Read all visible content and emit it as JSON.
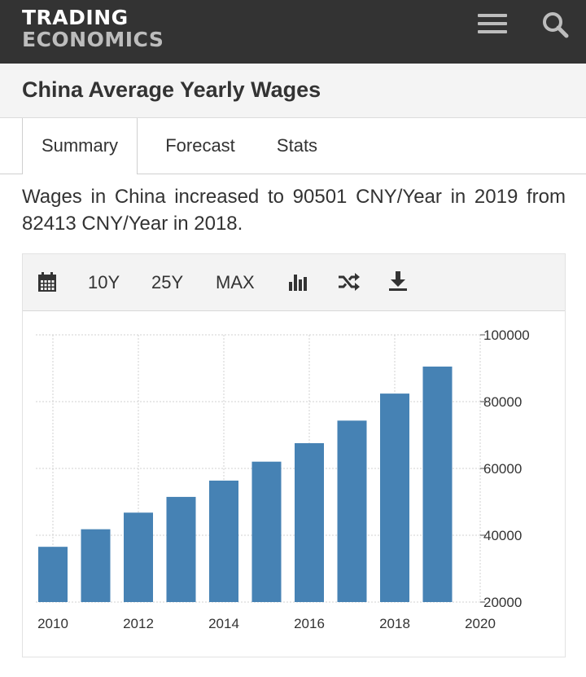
{
  "header": {
    "logo_line1": "TRADING",
    "logo_line2": "ECONOMICS",
    "menu_icon": "hamburger-menu-icon",
    "search_icon": "search-icon"
  },
  "page": {
    "title": "China Average Yearly Wages"
  },
  "tabs": [
    {
      "label": "Summary",
      "active": true
    },
    {
      "label": "Forecast",
      "active": false
    },
    {
      "label": "Stats",
      "active": false
    }
  ],
  "description": "Wages in China increased to 90501 CNY/Year in 2019 from 82413 CNY/Year in 2018.",
  "toolbar": {
    "calendar_icon": "calendar-icon",
    "range_10y": "10Y",
    "range_25y": "25Y",
    "range_max": "MAX",
    "bar_chart_icon": "bar-chart-icon",
    "shuffle_icon": "shuffle-icon",
    "download_icon": "download-icon"
  },
  "colors": {
    "header_bg": "#333333",
    "bar": "#4682b4",
    "grid": "#d0d0d0",
    "text": "#333333"
  },
  "chart_data": {
    "type": "bar",
    "x": [
      2010,
      2011,
      2012,
      2013,
      2014,
      2015,
      2016,
      2017,
      2018,
      2019
    ],
    "values": [
      36539,
      41799,
      46769,
      51483,
      56360,
      62029,
      67569,
      74318,
      82413,
      90501
    ],
    "xticks": [
      "2010",
      "2012",
      "2014",
      "2016",
      "2018",
      "2020"
    ],
    "yticks": [
      "20000",
      "40000",
      "60000",
      "80000",
      "100000"
    ],
    "xlim": [
      2009.6,
      2020
    ],
    "ylim": [
      20000,
      100000
    ],
    "grid": true,
    "y_axis_side": "right"
  }
}
